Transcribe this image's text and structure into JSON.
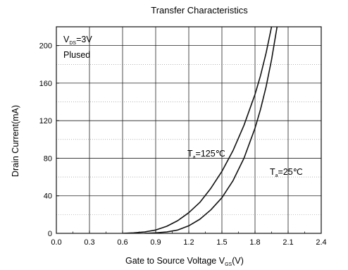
{
  "chart_data": {
    "type": "line",
    "title": "Transfer Characteristics",
    "xlabel": {
      "text": "Gate to Source Voltage V",
      "sub": "GS",
      "unit": "(V)"
    },
    "ylabel": "Drain Current(mA)",
    "xlim": [
      0.0,
      2.4
    ],
    "ylim": [
      0,
      220
    ],
    "xticks": [
      "0.0",
      "0.3",
      "0.6",
      "0.9",
      "1.2",
      "1.5",
      "1.8",
      "2.1",
      "2.4"
    ],
    "yticks": [
      "0",
      "40",
      "80",
      "120",
      "160",
      "200"
    ],
    "grid": true,
    "condition": {
      "main": "V",
      "sub": "DS",
      "value": "=3V",
      "line2": "Plused"
    },
    "series": [
      {
        "name": "Ta=125℃",
        "label": {
          "main": "T",
          "sub": "a",
          "value": "=125℃"
        },
        "x": [
          0.6,
          0.7,
          0.8,
          0.9,
          1.0,
          1.1,
          1.2,
          1.3,
          1.4,
          1.5,
          1.6,
          1.7,
          1.8,
          1.85,
          1.9,
          1.95
        ],
        "y": [
          0,
          0.5,
          1.5,
          3.5,
          7.5,
          13.5,
          22,
          33,
          48,
          66,
          88,
          115,
          148,
          168,
          192,
          220
        ]
      },
      {
        "name": "Ta=25℃",
        "label": {
          "main": "T",
          "sub": "a",
          "value": "=25℃"
        },
        "x": [
          0.8,
          0.9,
          1.0,
          1.1,
          1.2,
          1.3,
          1.4,
          1.5,
          1.6,
          1.7,
          1.8,
          1.85,
          1.9,
          1.95,
          2.0
        ],
        "y": [
          0,
          0.5,
          1.5,
          3.5,
          8,
          15,
          25,
          38,
          56,
          80,
          112,
          132,
          156,
          185,
          220
        ]
      }
    ]
  }
}
